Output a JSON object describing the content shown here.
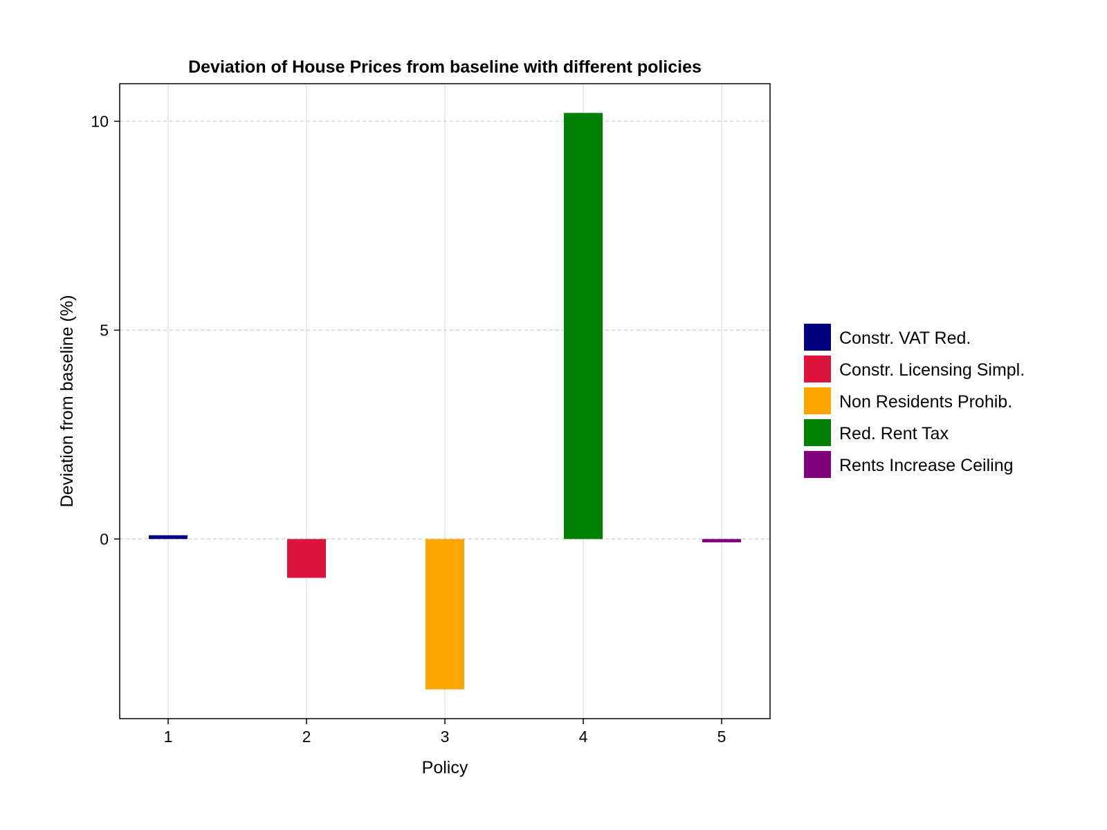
{
  "chart_data": {
    "type": "bar",
    "title": "Deviation of House Prices from baseline with different policies",
    "xlabel": "Policy",
    "ylabel": "Deviation from baseline (%)",
    "categories": [
      "1",
      "2",
      "3",
      "4",
      "5"
    ],
    "values": [
      0.09,
      -0.93,
      -3.6,
      10.2,
      -0.08
    ],
    "colors": [
      "#000080",
      "#dc143c",
      "#ffa500",
      "#008000",
      "#800080"
    ],
    "ylim": [
      -4.3,
      10.9
    ],
    "yticks": [
      0,
      5,
      10
    ],
    "ytick_labels": [
      "0",
      "5",
      "10"
    ],
    "grid": true,
    "legend_position": "right",
    "legend": [
      {
        "label": "Constr. VAT Red.",
        "color": "#000080"
      },
      {
        "label": "Constr. Licensing Simpl.",
        "color": "#dc143c"
      },
      {
        "label": "Non Residents Prohib.",
        "color": "#ffa500"
      },
      {
        "label": "Red. Rent Tax",
        "color": "#008000"
      },
      {
        "label": "Rents Increase Ceiling",
        "color": "#800080"
      }
    ]
  }
}
